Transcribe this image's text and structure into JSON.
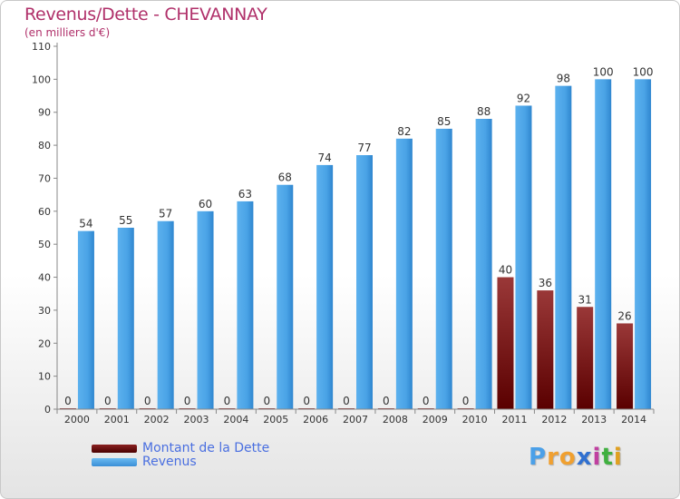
{
  "header": {
    "title": "Revenus/Dette - CHEVANNAY",
    "subtitle": "(en milliers d'€)"
  },
  "legend": {
    "items": [
      {
        "label": "Montant de la Dette",
        "color": "#6b0a0a"
      },
      {
        "label": "Revenus",
        "color": "#4aa3e6"
      }
    ]
  },
  "logo": {
    "text": "Proxiti"
  },
  "colors": {
    "dette_dark": "#5a0000",
    "dette_light": "#9a3838",
    "revenus_dark": "#2f86cf",
    "revenus_light": "#5cb1ee",
    "axis": "#888888",
    "grid": "#dddddd",
    "text": "#333333"
  },
  "chart_data": {
    "type": "bar",
    "title": "Revenus/Dette - CHEVANNAY",
    "subtitle": "(en milliers d'€)",
    "categories": [
      "2000",
      "2001",
      "2002",
      "2003",
      "2004",
      "2005",
      "2006",
      "2007",
      "2008",
      "2009",
      "2010",
      "2011",
      "2012",
      "2013",
      "2014"
    ],
    "series": [
      {
        "name": "Montant de la Dette",
        "values": [
          0,
          0,
          0,
          0,
          0,
          0,
          0,
          0,
          0,
          0,
          0,
          40,
          36,
          31,
          26
        ]
      },
      {
        "name": "Revenus",
        "values": [
          54,
          55,
          57,
          60,
          63,
          68,
          74,
          77,
          82,
          85,
          88,
          92,
          98,
          100,
          100
        ]
      }
    ],
    "ylim": [
      0,
      110
    ],
    "yticks": [
      0,
      10,
      20,
      30,
      40,
      50,
      60,
      70,
      80,
      90,
      100,
      110
    ],
    "grid": false,
    "legend_position": "bottom-left"
  }
}
